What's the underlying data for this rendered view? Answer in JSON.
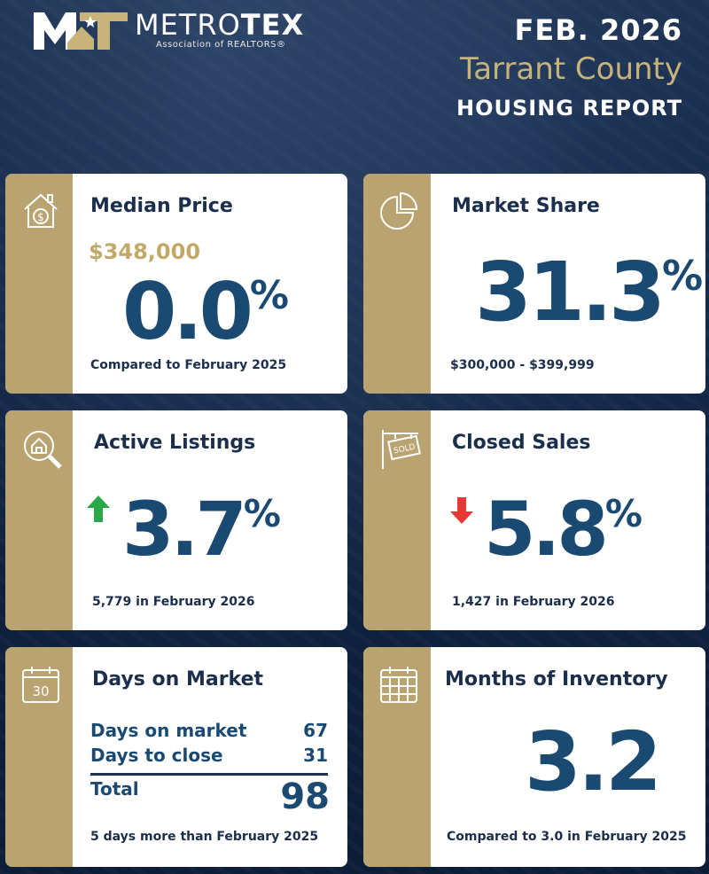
{
  "header": {
    "logo_name_light": "METRO",
    "logo_name_bold": "TEX",
    "logo_sub": "Association of REALTORS®",
    "date": "FEB. 2026",
    "county": "Tarrant County",
    "report": "HOUSING REPORT"
  },
  "colors": {
    "navy": "#0f1f3a",
    "gold": "#b8a371",
    "blue": "#1a4a72",
    "green": "#2ba84a",
    "red": "#e53935"
  },
  "cards": {
    "median_price": {
      "icon": "house-dollar-icon",
      "title": "Median Price",
      "price": "$348,000",
      "change": "0.0",
      "unit": "%",
      "footer": "Compared to February 2025"
    },
    "market_share": {
      "icon": "pie-chart-icon",
      "title": "Market Share",
      "value": "31.3",
      "unit": "%",
      "footer": "$300,000 - $399,999"
    },
    "active_listings": {
      "icon": "magnify-house-icon",
      "title": "Active Listings",
      "direction": "up",
      "change": "3.7",
      "unit": "%",
      "footer": "5,779 in February 2026"
    },
    "closed_sales": {
      "icon": "sold-sign-icon",
      "title": "Closed Sales",
      "direction": "down",
      "change": "5.8",
      "unit": "%",
      "footer": "1,427 in February 2026"
    },
    "days_on_market": {
      "icon": "calendar-30-icon",
      "calendar_label": "30",
      "title": "Days on Market",
      "rows": [
        {
          "label": "Days on market",
          "value": "67"
        },
        {
          "label": "Days to close",
          "value": "31"
        }
      ],
      "total_label": "Total",
      "total_value": "98",
      "footer": "5 days more than February 2025"
    },
    "months_inventory": {
      "icon": "calendar-grid-icon",
      "title": "Months of Inventory",
      "value": "3.2",
      "footer": "Compared to 3.0 in February 2025"
    }
  }
}
